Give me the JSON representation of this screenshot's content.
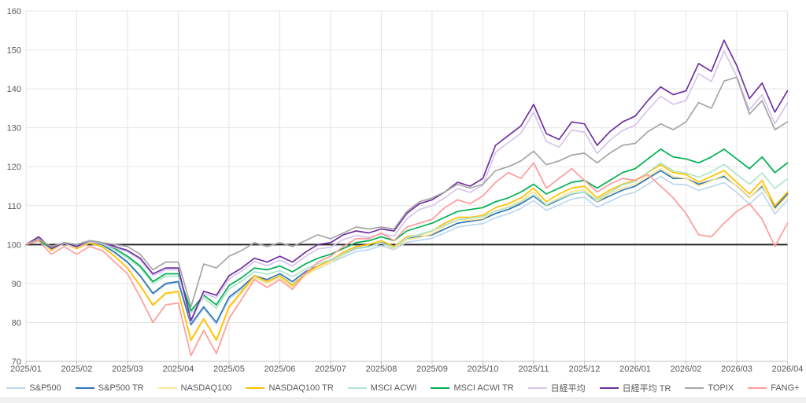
{
  "chart_data": {
    "type": "line",
    "title": "",
    "xlabel": "",
    "ylabel": "",
    "x_axis": {
      "tick_labels": [
        "2025/01",
        "2025/02",
        "2025/03",
        "2025/04",
        "2025/05",
        "2025/06",
        "2025/07",
        "2025/08",
        "2025/09",
        "2025/10",
        "2025/11",
        "2025/12",
        "2026/01",
        "2026/02",
        "2026/03",
        "2026/04"
      ],
      "points_per_month": 4,
      "x_start_month_index": 0,
      "x_step_months": 0.25
    },
    "y_axis": {
      "ticks": [
        70,
        80,
        90,
        100,
        110,
        120,
        130,
        140,
        150,
        160
      ],
      "ylim": [
        70,
        160
      ]
    },
    "baseline": {
      "value": 100,
      "color": "#262626"
    },
    "grid": {
      "on": true,
      "color": "#e5e5e5",
      "axis_color": "#bfbfbf"
    },
    "legend_position": "bottom",
    "text_color": "#595959",
    "series": [
      {
        "id": "sp500",
        "name": "S&P500",
        "color": "#BDD7EE",
        "values": [
          100,
          101.4,
          98.9,
          100.4,
          99.4,
          100.4,
          99.9,
          97.8,
          95.3,
          91.8,
          87.2,
          89.7,
          90.2,
          79.2,
          83.6,
          79.6,
          86,
          88.5,
          91.4,
          90.4,
          91.9,
          89.9,
          92.4,
          93.8,
          95.3,
          96.8,
          98.2,
          98.7,
          99.7,
          98.7,
          100.6,
          101.1,
          101.6,
          103,
          104.5,
          105,
          105.4,
          106.9,
          107.9,
          109.3,
          111.3,
          108.8,
          110.2,
          111.7,
          112.2,
          109.6,
          111.1,
          112.6,
          113.5,
          115.5,
          117.5,
          115.5,
          115.4,
          113.9,
          114.9,
          115.9,
          113.4,
          110.4,
          113.4,
          107.9,
          111.4
        ]
      },
      {
        "id": "sp500-tr",
        "name": "S&P500 TR",
        "color": "#2E75B6",
        "values": [
          100,
          101.5,
          99,
          100.5,
          99.5,
          100.5,
          100,
          98,
          95.5,
          92,
          87.5,
          90,
          90.5,
          79.5,
          84,
          80,
          86.5,
          89,
          92,
          91,
          92.5,
          90.5,
          93,
          94.5,
          96,
          97.5,
          99,
          99.5,
          100.5,
          99.5,
          101.5,
          102,
          102.5,
          104,
          105.5,
          106,
          106.5,
          108,
          109,
          110.5,
          112.5,
          110,
          111.5,
          113,
          113.5,
          111,
          112.5,
          114,
          115,
          117,
          119,
          117,
          117,
          115.5,
          116.5,
          117.5,
          115,
          112,
          115,
          109.5,
          113
        ]
      },
      {
        "id": "nasdaq100",
        "name": "NASDAQ100",
        "color": "#FFE699",
        "values": [
          100,
          101.45,
          98.45,
          100.4,
          98.9,
          100.4,
          99.4,
          96.9,
          93.9,
          89.3,
          84.3,
          87.3,
          87.8,
          75.2,
          80.7,
          75.2,
          83.6,
          87.6,
          91.5,
          90,
          91.5,
          89,
          92,
          94,
          95.4,
          97.4,
          98.9,
          99.4,
          100.4,
          98.9,
          101.3,
          101.8,
          102.8,
          104.8,
          106.3,
          106.3,
          106.7,
          108.7,
          109.7,
          111.2,
          113.6,
          110.1,
          112.1,
          113.6,
          114.1,
          111.1,
          113.1,
          114.5,
          115.5,
          117.5,
          119.5,
          117.5,
          117,
          115,
          116.4,
          117.9,
          114.9,
          111.9,
          115.4,
          108.9,
          112.5
        ]
      },
      {
        "id": "nasdaq100-tr",
        "name": "NASDAQ100 TR",
        "color": "#FFC000",
        "values": [
          100,
          101.5,
          98.5,
          100.5,
          99,
          100.5,
          99.5,
          97,
          94,
          89.5,
          84.5,
          87.5,
          88,
          75.5,
          81,
          75.5,
          84,
          88,
          92,
          90.5,
          92,
          89.5,
          92.5,
          94.5,
          96,
          98,
          99.5,
          100,
          101,
          99.5,
          102,
          102.5,
          103.5,
          105.5,
          107,
          107,
          107.5,
          109.5,
          110.5,
          112,
          114.5,
          111,
          113,
          114.5,
          115,
          112,
          114,
          115.5,
          116.5,
          118.5,
          120.5,
          118.5,
          118,
          116,
          117.5,
          119,
          116,
          113,
          116.5,
          110,
          113.5
        ]
      },
      {
        "id": "msci-acwi",
        "name": "MSCI ACWI",
        "color": "#AEE5CC",
        "values": [
          100,
          100.9,
          98.9,
          100.3,
          99.8,
          100.7,
          100.2,
          98.6,
          96.6,
          94,
          90,
          91.9,
          91.9,
          82.4,
          86.3,
          83.7,
          88.6,
          90.6,
          93,
          92.4,
          93.3,
          91.8,
          93.7,
          95.1,
          96.1,
          97.5,
          98.9,
          99.4,
          100.3,
          99.3,
          101.7,
          102.6,
          103.6,
          105,
          106.4,
          106.8,
          107.2,
          108.6,
          109.5,
          110.9,
          112.8,
          110.3,
          111.7,
          113.1,
          113.5,
          111.5,
          113.4,
          115.3,
          116.2,
          118.6,
          121,
          118.9,
          118.4,
          117.3,
          118.7,
          120.6,
          118,
          115.5,
          118.4,
          114.4,
          116.9
        ]
      },
      {
        "id": "msci-acwi-tr",
        "name": "MSCI ACWI TR",
        "color": "#00B050",
        "values": [
          100,
          101,
          99,
          100.5,
          100,
          101,
          100.5,
          99,
          97,
          94.5,
          90.5,
          92.5,
          92.5,
          83,
          87,
          84.5,
          89.5,
          91.5,
          94,
          93.5,
          94.5,
          93,
          95,
          96.5,
          97.5,
          99,
          100.5,
          101,
          102,
          101,
          103.5,
          104.5,
          105.5,
          107,
          108.5,
          109,
          109.5,
          111,
          112,
          113.5,
          115.5,
          113,
          114.5,
          116,
          116.5,
          114.5,
          116.5,
          118.5,
          119.5,
          122,
          124.5,
          122.5,
          122,
          121,
          122.5,
          124.5,
          122,
          119.5,
          122.5,
          118.5,
          121
        ]
      },
      {
        "id": "nikkei225",
        "name": "日経平均",
        "color": "#D5C5EC",
        "values": [
          100,
          101.9,
          98.9,
          100.4,
          99.3,
          100.8,
          100.3,
          99.2,
          98.2,
          96.1,
          92.1,
          93.5,
          93.5,
          80,
          87.4,
          86.3,
          91.2,
          93.2,
          95.6,
          94.6,
          96,
          94.5,
          96.9,
          98.9,
          99.3,
          101.3,
          102.3,
          101.8,
          102.7,
          102.2,
          106.6,
          109,
          110,
          112,
          114.4,
          113.4,
          115.3,
          123.7,
          126.2,
          128.6,
          134,
          126.5,
          125,
          129.4,
          128.9,
          123.4,
          126.8,
          129.3,
          130.7,
          134.6,
          138.1,
          136,
          137,
          143.9,
          141.9,
          149.7,
          143.2,
          134.6,
          138.5,
          131,
          136.4
        ]
      },
      {
        "id": "nikkei225-tr",
        "name": "日経平均 TR",
        "color": "#7030A0",
        "values": [
          100,
          102,
          99,
          100.5,
          99.5,
          101,
          100.5,
          99.5,
          98.5,
          96.5,
          92.5,
          94,
          94,
          80.5,
          88,
          87,
          92,
          94,
          96.5,
          95.5,
          97,
          95.5,
          98,
          100,
          100.5,
          102.5,
          103.5,
          103,
          104,
          103.5,
          108,
          110.5,
          111.5,
          113.5,
          116,
          115,
          117,
          125.5,
          128,
          130.5,
          136,
          128.5,
          127,
          131.5,
          131,
          125.5,
          129,
          131.5,
          133,
          137,
          140.5,
          138.5,
          139.5,
          146.5,
          144.5,
          152.5,
          146,
          137.5,
          141.5,
          134,
          139.5
        ]
      },
      {
        "id": "topix",
        "name": "TOPIX",
        "color": "#A6A6A6",
        "values": [
          100,
          101.5,
          99.5,
          100.5,
          100,
          101,
          100.5,
          100,
          99.5,
          97.5,
          93.5,
          95.5,
          95.5,
          84,
          95,
          94,
          97,
          98.5,
          100.5,
          99.5,
          100.5,
          99.5,
          101,
          102.5,
          101.5,
          103,
          104.5,
          104,
          104.5,
          104,
          108.5,
          111,
          112,
          113.5,
          115.5,
          114.5,
          115.5,
          119,
          120,
          121.5,
          124,
          120.5,
          121.5,
          123,
          123.5,
          121,
          123.5,
          125.5,
          126,
          129,
          131,
          129.5,
          131.5,
          136.5,
          135,
          142,
          143,
          133.5,
          137,
          129.5,
          131.5
        ]
      },
      {
        "id": "fang-plus",
        "name": "FANG+",
        "color": "#FF9B9B",
        "values": [
          100,
          101,
          97.5,
          99.5,
          97.5,
          99.5,
          98.5,
          95.5,
          92.5,
          86.5,
          80,
          84.5,
          85,
          71.5,
          78,
          72,
          81,
          86,
          91,
          89,
          91,
          88.5,
          92.5,
          95.5,
          97,
          99.5,
          101.5,
          101.5,
          103,
          101,
          104.5,
          105.5,
          106.5,
          109.5,
          111.5,
          110.5,
          112.5,
          116,
          118.5,
          117,
          121,
          114.5,
          117,
          119.5,
          116.5,
          113.5,
          115.5,
          117,
          116.5,
          118,
          115,
          112,
          108,
          102.5,
          102,
          105.5,
          108.5,
          110.5,
          106.5,
          99.5,
          105.5
        ]
      }
    ]
  }
}
